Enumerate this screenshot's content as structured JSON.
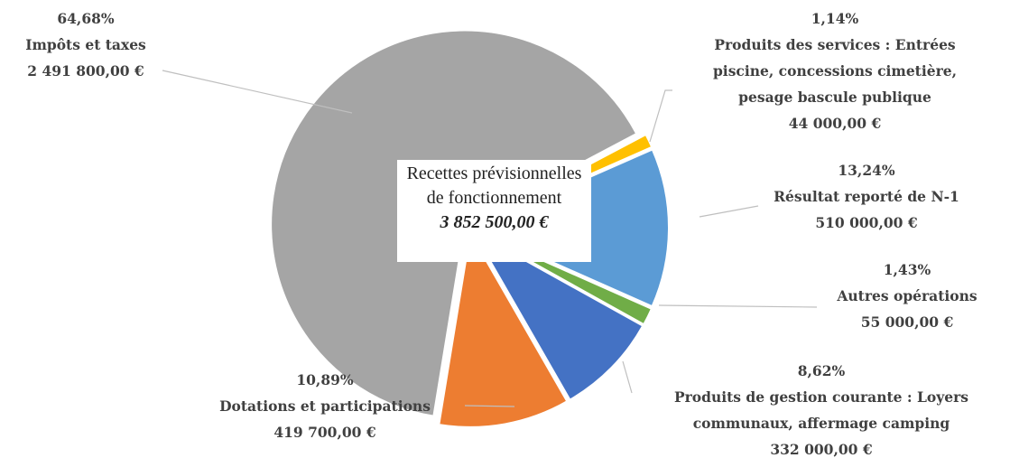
{
  "chart_data": {
    "type": "pie",
    "center_label": "Recettes prévisionnelles de fonctionnement",
    "total": 3852500,
    "total_label": "3 852 500,00 €",
    "categories": [
      "Impôts et taxes",
      "Produits des services : Entrées piscine, concessions cimetière, pesage bascule publique",
      "Résultat reporté de N-1",
      "Autres opérations",
      "Produits de gestion courante : Loyers communaux, affermage camping",
      "Dotations et participations"
    ],
    "values": [
      64.68,
      1.14,
      13.24,
      1.43,
      8.62,
      10.89
    ],
    "value_labels": [
      "64,68%",
      "1,14%",
      "13,24%",
      "1,43%",
      "8,62%",
      "10,89%"
    ],
    "amounts": [
      2491800,
      44000,
      510000,
      55000,
      332000,
      419700
    ],
    "amount_labels": [
      "2 491 800,00 €",
      "44 000,00 €",
      "510 000,00 €",
      "55 000,00 €",
      "332 000,00 €",
      "419 700,00 €"
    ],
    "colors": [
      "#a5a5a5",
      "#ffc000",
      "#5b9bd5",
      "#70ad47",
      "#4472c4",
      "#ed7d31"
    ]
  }
}
